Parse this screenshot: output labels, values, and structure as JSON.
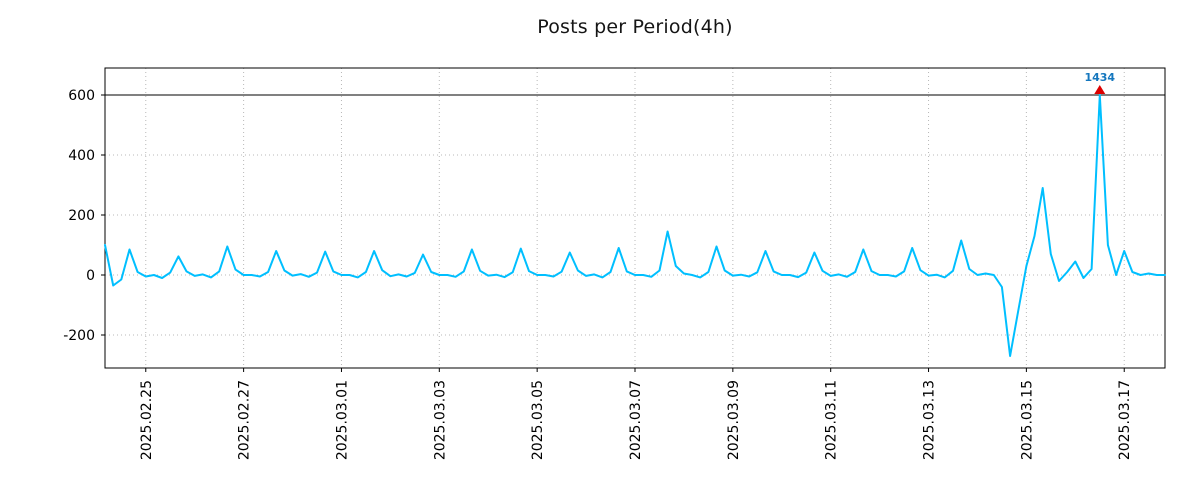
{
  "chart_data": {
    "type": "line",
    "title": "Posts per Period(4h)",
    "period_hours": 4,
    "grid": true,
    "x_tick_labels": [
      "2025.02.25",
      "2025.02.27",
      "2025.03.01",
      "2025.03.03",
      "2025.03.05",
      "2025.03.07",
      "2025.03.09",
      "2025.03.11",
      "2025.03.13",
      "2025.03.15",
      "2025.03.17"
    ],
    "x_tick_indices": [
      5,
      17,
      29,
      41,
      53,
      65,
      77,
      89,
      101,
      113,
      125
    ],
    "y_ticks": [
      -200,
      0,
      200,
      400,
      600
    ],
    "ylim": [
      -310,
      690
    ],
    "reference_line_y": 600,
    "series": [
      {
        "name": "posts_per_4h",
        "values": [
          100,
          -35,
          -15,
          85,
          10,
          -5,
          0,
          -10,
          8,
          62,
          12,
          -3,
          2,
          -8,
          12,
          95,
          18,
          0,
          0,
          -5,
          10,
          80,
          15,
          -2,
          3,
          -6,
          8,
          78,
          12,
          0,
          0,
          -8,
          10,
          80,
          16,
          -4,
          2,
          -5,
          7,
          68,
          10,
          0,
          0,
          -6,
          12,
          85,
          14,
          -2,
          1,
          -7,
          9,
          88,
          13,
          0,
          0,
          -5,
          11,
          75,
          15,
          -3,
          2,
          -8,
          10,
          90,
          12,
          0,
          0,
          -6,
          15,
          145,
          30,
          5,
          0,
          -8,
          10,
          95,
          15,
          -2,
          1,
          -5,
          9,
          80,
          12,
          0,
          0,
          -7,
          8,
          75,
          14,
          -3,
          2,
          -6,
          10,
          85,
          13,
          0,
          0,
          -5,
          12,
          90,
          16,
          -2,
          1,
          -8,
          14,
          115,
          20,
          0,
          5,
          0,
          -40,
          -270,
          -120,
          30,
          130,
          290,
          70,
          -20,
          10,
          45,
          -10,
          20,
          600,
          100,
          0,
          80,
          10,
          0,
          5,
          0,
          0
        ]
      }
    ],
    "peak_annotation": {
      "text": "1434",
      "value": 1434,
      "index": 122,
      "clipped_at": 600
    },
    "colors": {
      "line": "#00BFFF",
      "marker": "#dd0000",
      "annotation": "#1577be",
      "grid": "#b8b8b8",
      "axis": "#000000",
      "reference_line": "#000000",
      "tick_label": "#000000"
    }
  }
}
